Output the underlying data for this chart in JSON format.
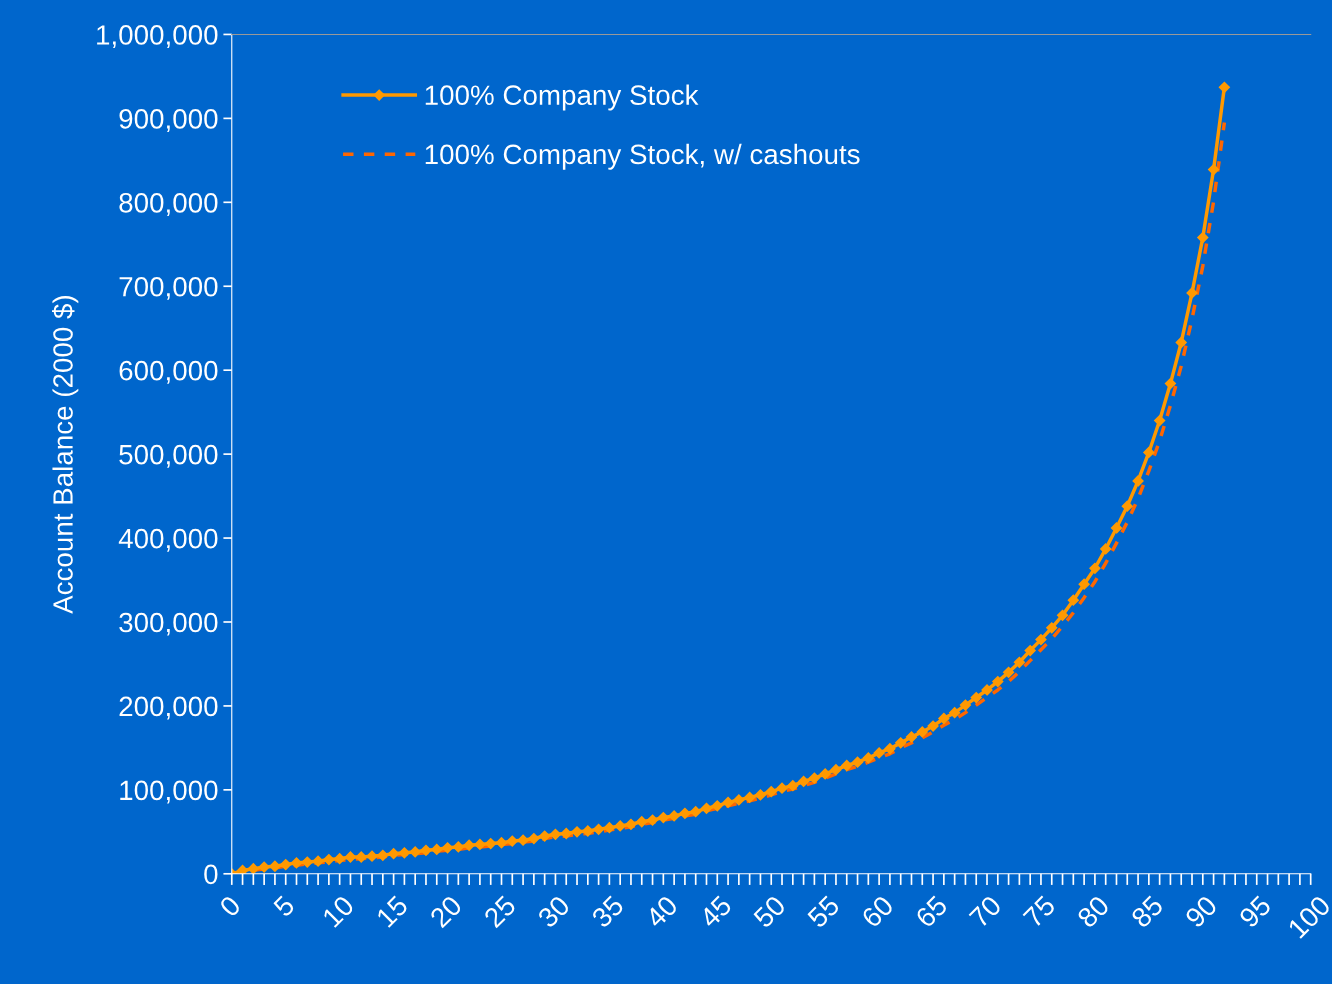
{
  "chart_data": {
    "type": "line",
    "ylabel": "Account Balance (2000 $)",
    "x": [
      0,
      1,
      2,
      3,
      4,
      5,
      6,
      7,
      8,
      9,
      10,
      11,
      12,
      13,
      14,
      15,
      16,
      17,
      18,
      19,
      20,
      21,
      22,
      23,
      24,
      25,
      26,
      27,
      28,
      29,
      30,
      31,
      32,
      33,
      34,
      35,
      36,
      37,
      38,
      39,
      40,
      41,
      42,
      43,
      44,
      45,
      46,
      47,
      48,
      49,
      50,
      51,
      52,
      53,
      54,
      55,
      56,
      57,
      58,
      59,
      60,
      61,
      62,
      63,
      64,
      65,
      66,
      67,
      68,
      69,
      70,
      71,
      72,
      73,
      74,
      75,
      76,
      77,
      78,
      79,
      80,
      81,
      82,
      83,
      84,
      85,
      86,
      87,
      88,
      89,
      90,
      91,
      92
    ],
    "series": [
      {
        "name": "100% Company Stock",
        "color": "#ff9900",
        "marker": "diamond",
        "line_style": "solid",
        "values": [
          0,
          4000,
          6000,
          8000,
          9000,
          11000,
          13000,
          14000,
          15000,
          17000,
          18000,
          20000,
          20000,
          21000,
          22000,
          24000,
          25000,
          26000,
          28000,
          29000,
          31000,
          32000,
          34000,
          35000,
          36000,
          37000,
          39000,
          40000,
          42000,
          45000,
          47000,
          48000,
          50000,
          51000,
          53000,
          55000,
          57000,
          59000,
          62000,
          64000,
          67000,
          69000,
          72000,
          74000,
          78000,
          81000,
          85000,
          88000,
          91000,
          94000,
          98000,
          102000,
          105000,
          110000,
          114000,
          119000,
          124000,
          129000,
          133000,
          138000,
          144000,
          149000,
          156000,
          163000,
          169000,
          176000,
          185000,
          192000,
          201000,
          210000,
          219000,
          229000,
          240000,
          252000,
          266000,
          279000,
          293000,
          308000,
          326000,
          345000,
          364000,
          387000,
          412000,
          438000,
          468000,
          502000,
          540000,
          584000,
          633000,
          692000,
          758000,
          839000,
          937000
        ]
      },
      {
        "name": "100% Company Stock, w/ cashouts",
        "color": "#ff6600",
        "marker": "none",
        "line_style": "dashed",
        "values": [
          0,
          2000,
          4000,
          6000,
          7000,
          9000,
          10000,
          12000,
          13000,
          14000,
          16000,
          17000,
          18000,
          19000,
          20000,
          22000,
          23000,
          24000,
          25000,
          27000,
          28000,
          29000,
          31000,
          32000,
          33000,
          35000,
          36000,
          38000,
          39000,
          42000,
          44000,
          45000,
          47000,
          48000,
          50000,
          52000,
          54000,
          56000,
          59000,
          61000,
          64000,
          66000,
          69000,
          71000,
          75000,
          78000,
          81000,
          84000,
          87000,
          90000,
          94000,
          98000,
          101000,
          105000,
          109000,
          114000,
          119000,
          124000,
          128000,
          133000,
          138000,
          143000,
          150000,
          156000,
          162000,
          169000,
          177000,
          184000,
          192000,
          201000,
          210000,
          219000,
          229000,
          241000,
          254000,
          267000,
          280000,
          295000,
          311000,
          329000,
          348000,
          370000,
          394000,
          419000,
          447000,
          480000,
          516000,
          558000,
          605000,
          661000,
          724000,
          801000,
          895000
        ]
      }
    ],
    "xlim": [
      0,
      100
    ],
    "xticks": [
      0,
      {
        "value": 1,
        "label": null
      },
      {
        "value": 2,
        "label": null
      },
      {
        "value": 3,
        "label": null
      },
      {
        "value": 4,
        "label": null
      },
      5,
      {
        "value": 6,
        "label": null
      },
      {
        "value": 7,
        "label": null
      },
      {
        "value": 8,
        "label": null
      },
      {
        "value": 9,
        "label": null
      },
      10,
      {
        "value": 11,
        "label": null
      },
      {
        "value": 12,
        "label": null
      },
      {
        "value": 13,
        "label": null
      },
      {
        "value": 14,
        "label": null
      },
      15,
      {
        "value": 16,
        "label": null
      },
      {
        "value": 17,
        "label": null
      },
      {
        "value": 18,
        "label": null
      },
      {
        "value": 19,
        "label": null
      },
      20,
      {
        "value": 21,
        "label": null
      },
      {
        "value": 22,
        "label": null
      },
      {
        "value": 23,
        "label": null
      },
      {
        "value": 24,
        "label": null
      },
      25,
      {
        "value": 26,
        "label": null
      },
      {
        "value": 27,
        "label": null
      },
      {
        "value": 28,
        "label": null
      },
      {
        "value": 29,
        "label": null
      },
      30,
      {
        "value": 31,
        "label": null
      },
      {
        "value": 32,
        "label": null
      },
      {
        "value": 33,
        "label": null
      },
      {
        "value": 34,
        "label": null
      },
      35,
      {
        "value": 36,
        "label": null
      },
      {
        "value": 37,
        "label": null
      },
      {
        "value": 38,
        "label": null
      },
      {
        "value": 39,
        "label": null
      },
      40,
      {
        "value": 41,
        "label": null
      },
      {
        "value": 42,
        "label": null
      },
      {
        "value": 43,
        "label": null
      },
      {
        "value": 44,
        "label": null
      },
      45,
      {
        "value": 46,
        "label": null
      },
      {
        "value": 47,
        "label": null
      },
      {
        "value": 48,
        "label": null
      },
      {
        "value": 49,
        "label": null
      },
      50,
      {
        "value": 51,
        "label": null
      },
      {
        "value": 52,
        "label": null
      },
      {
        "value": 53,
        "label": null
      },
      {
        "value": 54,
        "label": null
      },
      55,
      {
        "value": 56,
        "label": null
      },
      {
        "value": 57,
        "label": null
      },
      {
        "value": 58,
        "label": null
      },
      {
        "value": 59,
        "label": null
      },
      60,
      {
        "value": 61,
        "label": null
      },
      {
        "value": 62,
        "label": null
      },
      {
        "value": 63,
        "label": null
      },
      {
        "value": 64,
        "label": null
      },
      65,
      {
        "value": 66,
        "label": null
      },
      {
        "value": 67,
        "label": null
      },
      {
        "value": 68,
        "label": null
      },
      {
        "value": 69,
        "label": null
      },
      70,
      {
        "value": 71,
        "label": null
      },
      {
        "value": 72,
        "label": null
      },
      {
        "value": 73,
        "label": null
      },
      {
        "value": 74,
        "label": null
      },
      75,
      {
        "value": 76,
        "label": null
      },
      {
        "value": 77,
        "label": null
      },
      {
        "value": 78,
        "label": null
      },
      {
        "value": 79,
        "label": null
      },
      80,
      {
        "value": 81,
        "label": null
      },
      {
        "value": 82,
        "label": null
      },
      {
        "value": 83,
        "label": null
      },
      {
        "value": 84,
        "label": null
      },
      85,
      {
        "value": 86,
        "label": null
      },
      {
        "value": 87,
        "label": null
      },
      {
        "value": 88,
        "label": null
      },
      {
        "value": 89,
        "label": null
      },
      90,
      {
        "value": 91,
        "label": null
      },
      {
        "value": 92,
        "label": null
      },
      {
        "value": 93,
        "label": null
      },
      {
        "value": 94,
        "label": null
      },
      95,
      {
        "value": 96,
        "label": null
      },
      {
        "value": 97,
        "label": null
      },
      {
        "value": 98,
        "label": null
      },
      {
        "value": 99,
        "label": null
      },
      100
    ],
    "ylim": [
      0,
      1000000
    ],
    "yticks": [
      {
        "value": 0,
        "label": "0"
      },
      {
        "value": 100000,
        "label": "100,000"
      },
      {
        "value": 200000,
        "label": "200,000"
      },
      {
        "value": 300000,
        "label": "300,000"
      },
      {
        "value": 400000,
        "label": "400,000"
      },
      {
        "value": 500000,
        "label": "500,000"
      },
      {
        "value": 600000,
        "label": "600,000"
      },
      {
        "value": 700000,
        "label": "700,000"
      },
      {
        "value": 800000,
        "label": "800,000"
      },
      {
        "value": 900000,
        "label": "900,000"
      },
      {
        "value": 1000000,
        "label": "1,000,000"
      }
    ],
    "grid": false,
    "legend": "top left"
  }
}
